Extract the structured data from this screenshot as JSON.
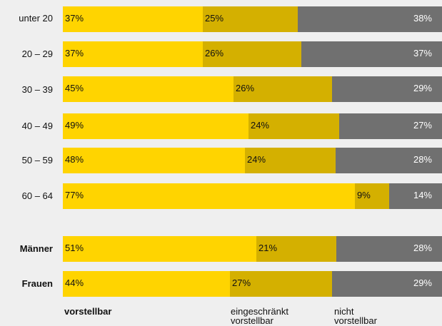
{
  "chart_data": {
    "type": "bar",
    "orientation": "horizontal",
    "stacked": true,
    "normalized": true,
    "categories": [
      "unter 20",
      "20 – 29",
      "30 – 39",
      "40 – 49",
      "50 – 59",
      "60 – 64",
      "Männer",
      "Frauen"
    ],
    "category_bold": [
      false,
      false,
      false,
      false,
      false,
      false,
      true,
      true
    ],
    "series": [
      {
        "name": "vorstellbar",
        "color": "#ffd400",
        "values": [
          37,
          37,
          45,
          49,
          48,
          77,
          51,
          44
        ],
        "labels": [
          "37%",
          "37%",
          "45%",
          "49%",
          "48%",
          "77%",
          "51%",
          "44%"
        ]
      },
      {
        "name": "eingeschränkt vorstellbar",
        "color": "#d4b000",
        "values": [
          25,
          26,
          26,
          24,
          24,
          9,
          21,
          27
        ],
        "labels": [
          "25%",
          "26%",
          "26%",
          "24%",
          "24%",
          "9%",
          "21%",
          "27%"
        ]
      },
      {
        "name": "nicht vorstellbar",
        "color": "#707070",
        "values": [
          38,
          37,
          29,
          27,
          28,
          14,
          28,
          29
        ],
        "labels": [
          "38%",
          "37%",
          "29%",
          "27%",
          "28%",
          "14%",
          "28%",
          "29%"
        ]
      }
    ],
    "legend": [
      {
        "lines": [
          "vorstellbar"
        ],
        "bold": true
      },
      {
        "lines": [
          "eingeschränkt",
          "vorstellbar"
        ],
        "bold": false
      },
      {
        "lines": [
          "nicht",
          "vorstellbar"
        ],
        "bold": false
      }
    ],
    "legend_position": "bottom"
  }
}
